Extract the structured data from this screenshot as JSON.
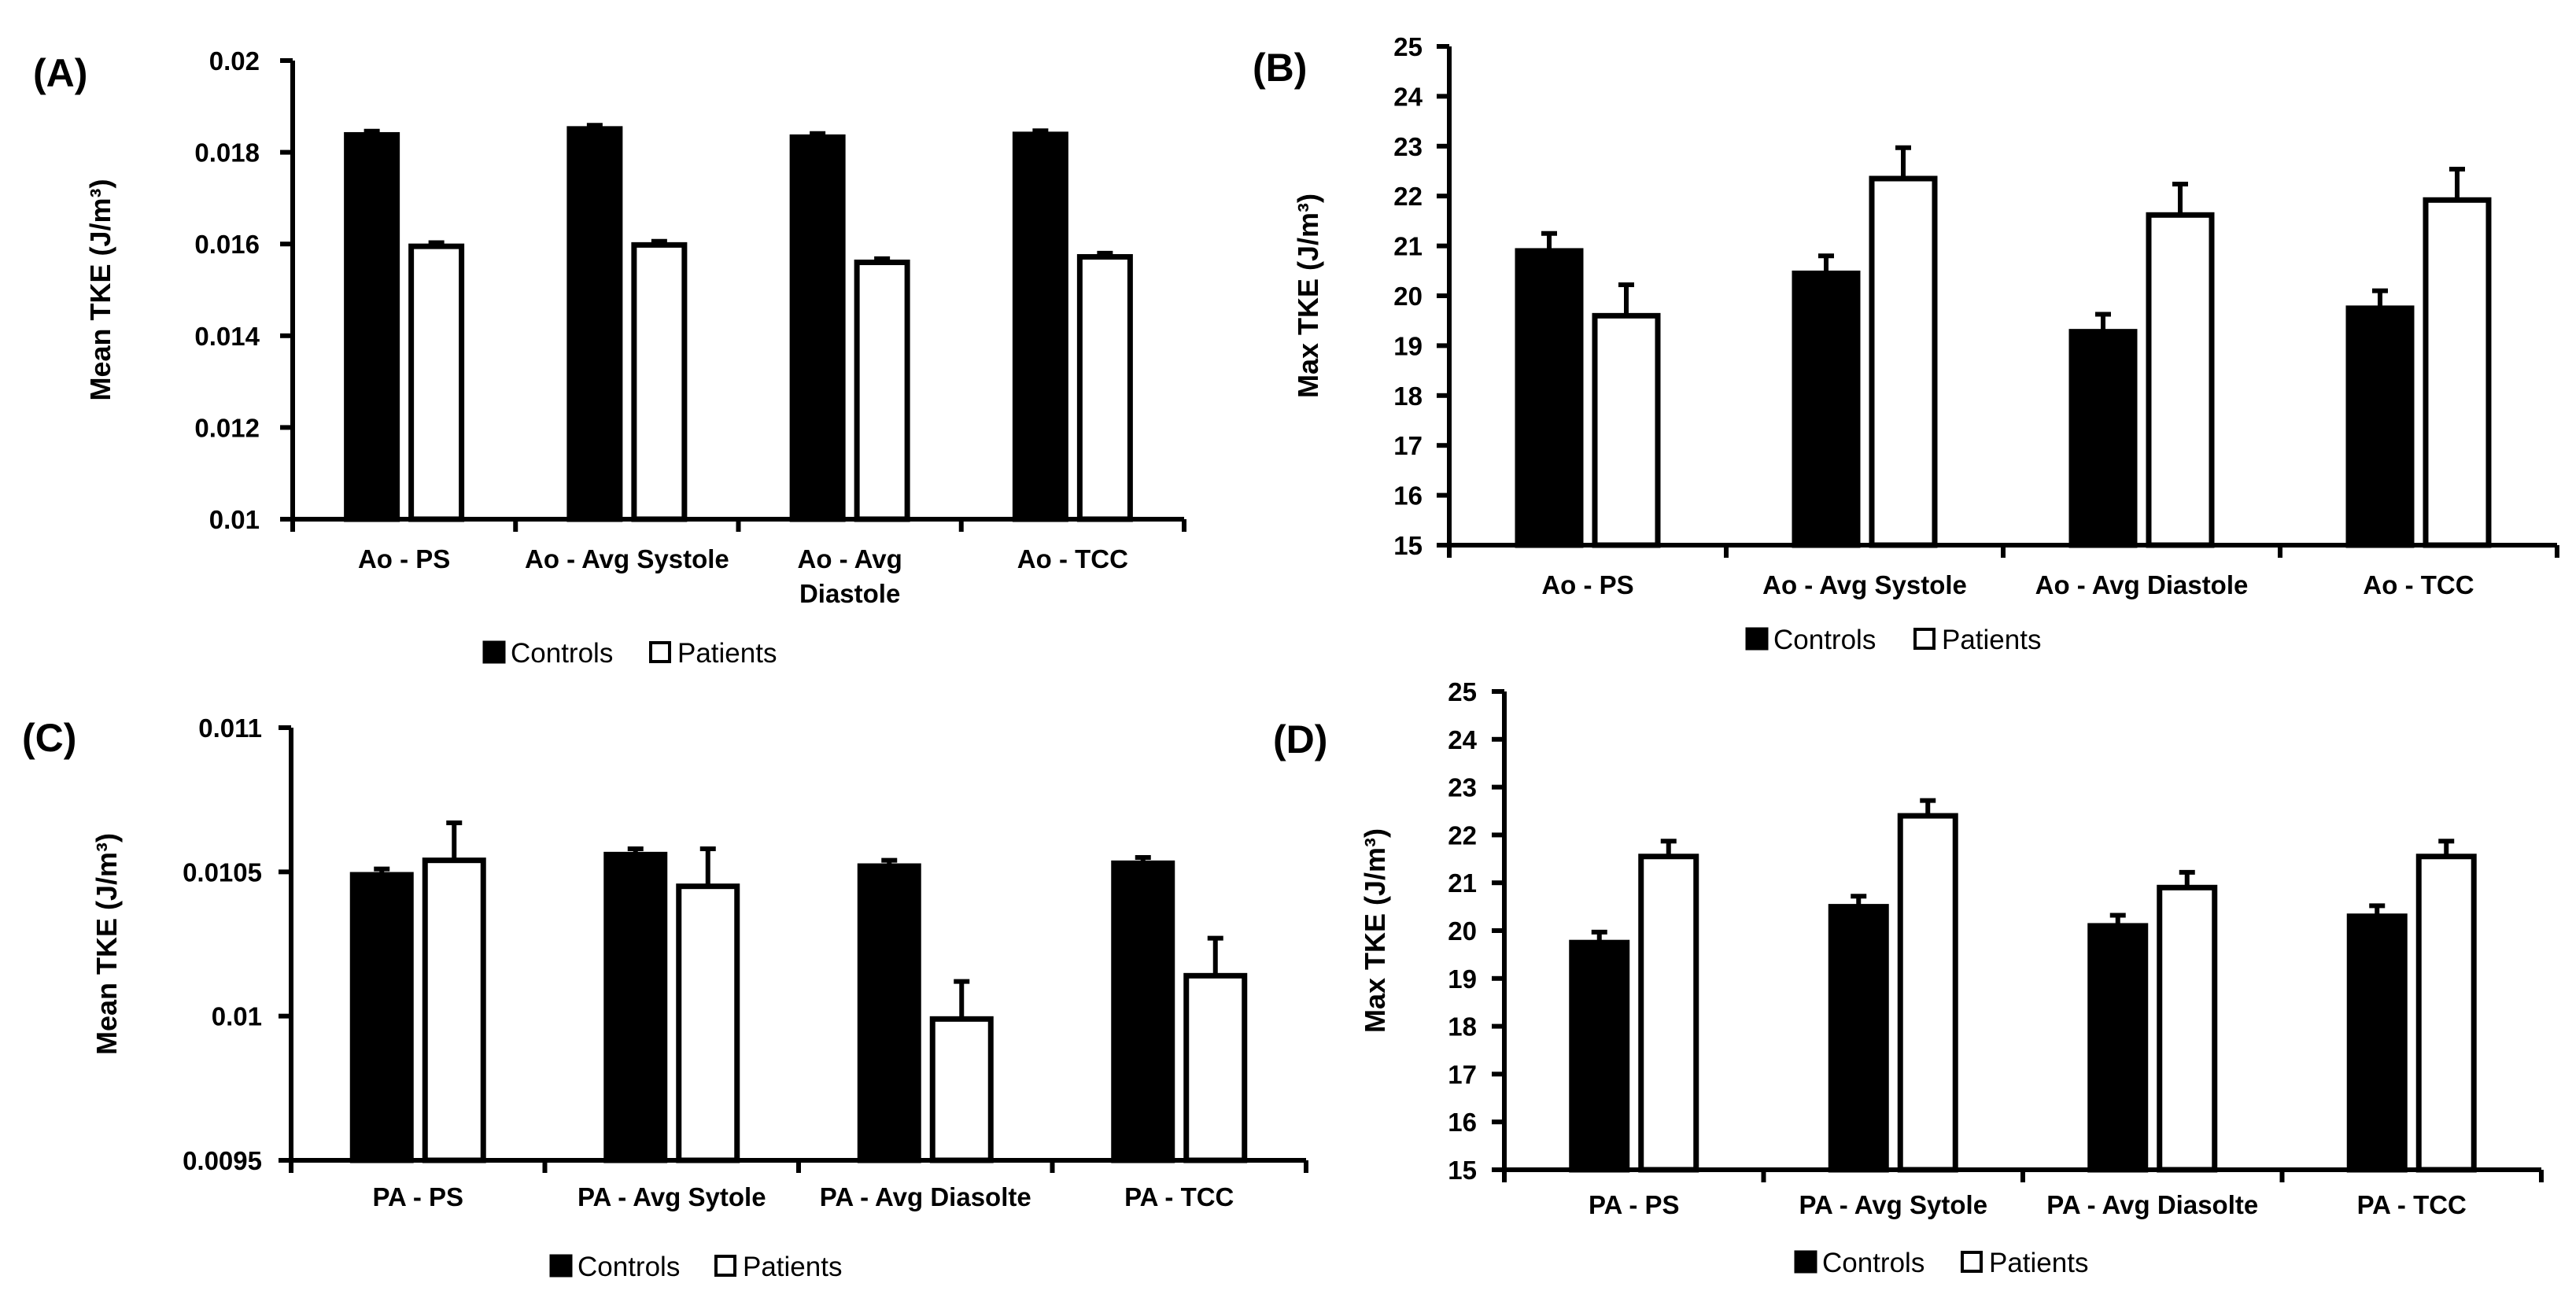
{
  "legend": {
    "controls": "Controls",
    "patients": "Patients"
  },
  "chart_data": [
    {
      "panel": "(A)",
      "type": "bar",
      "ylabel": "Mean TKE (J/m³)",
      "ylim": [
        0.01,
        0.02
      ],
      "yticks": [
        "0.01",
        "0.012",
        "0.014",
        "0.016",
        "0.018",
        "0.02"
      ],
      "categories": [
        [
          "Ao - PS"
        ],
        [
          "Ao - Avg Systole"
        ],
        [
          "Ao - Avg",
          "Diastole"
        ],
        [
          "Ao - TCC"
        ]
      ],
      "series": [
        {
          "name": "Controls",
          "color": "#000000",
          "values": [
            0.01838,
            0.01851,
            0.01833,
            0.01839
          ],
          "errors": [
            8e-05,
            8e-05,
            8e-05,
            8e-05
          ]
        },
        {
          "name": "Patients",
          "color": "#ffffff",
          "values": [
            0.01595,
            0.01598,
            0.0156,
            0.01572
          ],
          "errors": [
            8e-05,
            8e-05,
            8e-05,
            8e-05
          ]
        }
      ]
    },
    {
      "panel": "(B)",
      "type": "bar",
      "ylabel": "Max TKE (J/m³)",
      "ylim": [
        15,
        25
      ],
      "yticks": [
        "15",
        "16",
        "17",
        "18",
        "19",
        "20",
        "21",
        "22",
        "23",
        "24",
        "25"
      ],
      "categories": [
        [
          "Ao - PS"
        ],
        [
          "Ao - Avg Systole"
        ],
        [
          "Ao - Avg Diastole"
        ],
        [
          "Ao - TCC"
        ]
      ],
      "series": [
        {
          "name": "Controls",
          "color": "#000000",
          "values": [
            20.9,
            20.45,
            19.28,
            19.75
          ],
          "errors": [
            0.35,
            0.35,
            0.35,
            0.35
          ]
        },
        {
          "name": "Patients",
          "color": "#ffffff",
          "values": [
            19.6,
            22.35,
            21.62,
            21.92
          ],
          "errors": [
            0.62,
            0.62,
            0.62,
            0.62
          ]
        }
      ]
    },
    {
      "panel": "(C)",
      "type": "bar",
      "ylabel": "Mean TKE (J/m³)",
      "ylim": [
        0.0095,
        0.011
      ],
      "yticks": [
        "0.0095",
        "0.01",
        "0.0105",
        "0.011"
      ],
      "categories": [
        [
          "PA - PS"
        ],
        [
          "PA - Avg Sytole"
        ],
        [
          "PA - Avg Diasolte"
        ],
        [
          "PA - TCC"
        ]
      ],
      "series": [
        {
          "name": "Controls",
          "color": "#000000",
          "values": [
            0.01049,
            0.01056,
            0.01052,
            0.01053
          ],
          "errors": [
            2e-05,
            2e-05,
            2e-05,
            2e-05
          ]
        },
        {
          "name": "Patients",
          "color": "#ffffff",
          "values": [
            0.01054,
            0.01045,
            0.00999,
            0.01014
          ],
          "errors": [
            0.00013,
            0.00013,
            0.00013,
            0.00013
          ]
        }
      ]
    },
    {
      "panel": "(D)",
      "type": "bar",
      "ylabel": "Max TKE (J/m³)",
      "ylim": [
        15,
        25
      ],
      "yticks": [
        "15",
        "16",
        "17",
        "18",
        "19",
        "20",
        "21",
        "22",
        "23",
        "24",
        "25"
      ],
      "categories": [
        [
          "PA - PS"
        ],
        [
          "PA - Avg Sytole"
        ],
        [
          "PA - Avg Diasolte"
        ],
        [
          "PA - TCC"
        ]
      ],
      "series": [
        {
          "name": "Controls",
          "color": "#000000",
          "values": [
            19.75,
            20.5,
            20.1,
            20.3
          ],
          "errors": [
            0.22,
            0.22,
            0.22,
            0.22
          ]
        },
        {
          "name": "Patients",
          "color": "#ffffff",
          "values": [
            21.55,
            22.4,
            20.9,
            21.55
          ],
          "errors": [
            0.32,
            0.32,
            0.32,
            0.32
          ]
        }
      ]
    }
  ]
}
